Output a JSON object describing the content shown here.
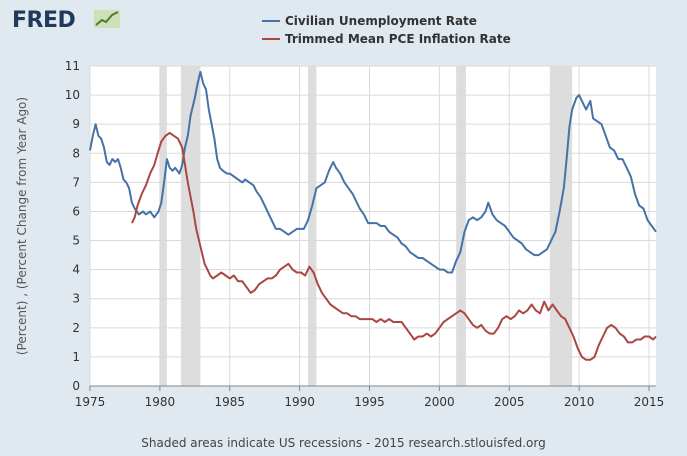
{
  "logo": {
    "text": "FRED",
    "mark": "chart-trend-icon"
  },
  "footnote": "Shaded areas indicate US recessions - 2015 research.stlouisfed.org",
  "colors": {
    "background": "#e1e9f0",
    "plot": "#ffffff",
    "recession": "#dddddd",
    "unemployment": "#4572a7",
    "inflation": "#aa4643"
  },
  "chart_data": {
    "type": "line",
    "title": "",
    "xlabel": "",
    "ylabel": "(Percent) , (Percent Change from Year Ago)",
    "xlim": [
      1975,
      2015.5
    ],
    "ylim": [
      0,
      11
    ],
    "xticks": [
      1975,
      1980,
      1985,
      1990,
      1995,
      2000,
      2005,
      2010,
      2015
    ],
    "yticks": [
      0,
      1,
      2,
      3,
      4,
      5,
      6,
      7,
      8,
      9,
      10,
      11
    ],
    "grid": true,
    "legend_position": "top",
    "recessions": [
      [
        1980.0,
        1980.5
      ],
      [
        1981.5,
        1982.9
      ],
      [
        1990.6,
        1991.2
      ],
      [
        2001.2,
        2001.9
      ],
      [
        2007.9,
        2009.5
      ]
    ],
    "series": [
      {
        "name": "Civilian Unemployment Rate",
        "color": "#4572a7",
        "points": [
          [
            1975.0,
            8.1
          ],
          [
            1975.2,
            8.6
          ],
          [
            1975.4,
            9.0
          ],
          [
            1975.6,
            8.6
          ],
          [
            1975.8,
            8.5
          ],
          [
            1976.0,
            8.2
          ],
          [
            1976.2,
            7.7
          ],
          [
            1976.4,
            7.6
          ],
          [
            1976.6,
            7.8
          ],
          [
            1976.8,
            7.7
          ],
          [
            1977.0,
            7.8
          ],
          [
            1977.2,
            7.5
          ],
          [
            1977.4,
            7.1
          ],
          [
            1977.6,
            7.0
          ],
          [
            1977.8,
            6.8
          ],
          [
            1978.0,
            6.3
          ],
          [
            1978.2,
            6.1
          ],
          [
            1978.5,
            5.9
          ],
          [
            1978.8,
            6.0
          ],
          [
            1979.0,
            5.9
          ],
          [
            1979.3,
            6.0
          ],
          [
            1979.6,
            5.8
          ],
          [
            1979.9,
            6.0
          ],
          [
            1980.1,
            6.3
          ],
          [
            1980.3,
            7.0
          ],
          [
            1980.5,
            7.8
          ],
          [
            1980.7,
            7.5
          ],
          [
            1980.9,
            7.4
          ],
          [
            1981.1,
            7.5
          ],
          [
            1981.4,
            7.3
          ],
          [
            1981.6,
            7.6
          ],
          [
            1981.8,
            8.2
          ],
          [
            1982.0,
            8.6
          ],
          [
            1982.2,
            9.3
          ],
          [
            1982.5,
            9.9
          ],
          [
            1982.7,
            10.4
          ],
          [
            1982.9,
            10.8
          ],
          [
            1983.1,
            10.4
          ],
          [
            1983.3,
            10.2
          ],
          [
            1983.5,
            9.5
          ],
          [
            1983.7,
            9.0
          ],
          [
            1983.9,
            8.5
          ],
          [
            1984.1,
            7.8
          ],
          [
            1984.3,
            7.5
          ],
          [
            1984.5,
            7.4
          ],
          [
            1984.8,
            7.3
          ],
          [
            1985.0,
            7.3
          ],
          [
            1985.3,
            7.2
          ],
          [
            1985.6,
            7.1
          ],
          [
            1985.9,
            7.0
          ],
          [
            1986.1,
            7.1
          ],
          [
            1986.4,
            7.0
          ],
          [
            1986.7,
            6.9
          ],
          [
            1986.9,
            6.7
          ],
          [
            1987.2,
            6.5
          ],
          [
            1987.5,
            6.2
          ],
          [
            1987.8,
            5.9
          ],
          [
            1988.0,
            5.7
          ],
          [
            1988.3,
            5.4
          ],
          [
            1988.6,
            5.4
          ],
          [
            1988.9,
            5.3
          ],
          [
            1989.2,
            5.2
          ],
          [
            1989.5,
            5.3
          ],
          [
            1989.8,
            5.4
          ],
          [
            1990.0,
            5.4
          ],
          [
            1990.3,
            5.4
          ],
          [
            1990.6,
            5.7
          ],
          [
            1990.9,
            6.2
          ],
          [
            1991.2,
            6.8
          ],
          [
            1991.5,
            6.9
          ],
          [
            1991.8,
            7.0
          ],
          [
            1992.1,
            7.4
          ],
          [
            1992.4,
            7.7
          ],
          [
            1992.6,
            7.5
          ],
          [
            1992.9,
            7.3
          ],
          [
            1993.2,
            7.0
          ],
          [
            1993.5,
            6.8
          ],
          [
            1993.8,
            6.6
          ],
          [
            1994.0,
            6.4
          ],
          [
            1994.3,
            6.1
          ],
          [
            1994.6,
            5.9
          ],
          [
            1994.9,
            5.6
          ],
          [
            1995.2,
            5.6
          ],
          [
            1995.5,
            5.6
          ],
          [
            1995.8,
            5.5
          ],
          [
            1996.1,
            5.5
          ],
          [
            1996.4,
            5.3
          ],
          [
            1996.7,
            5.2
          ],
          [
            1997.0,
            5.1
          ],
          [
            1997.3,
            4.9
          ],
          [
            1997.6,
            4.8
          ],
          [
            1997.9,
            4.6
          ],
          [
            1998.2,
            4.5
          ],
          [
            1998.5,
            4.4
          ],
          [
            1998.8,
            4.4
          ],
          [
            1999.1,
            4.3
          ],
          [
            1999.4,
            4.2
          ],
          [
            1999.7,
            4.1
          ],
          [
            2000.0,
            4.0
          ],
          [
            2000.3,
            4.0
          ],
          [
            2000.6,
            3.9
          ],
          [
            2000.9,
            3.9
          ],
          [
            2001.2,
            4.3
          ],
          [
            2001.5,
            4.6
          ],
          [
            2001.8,
            5.3
          ],
          [
            2002.1,
            5.7
          ],
          [
            2002.4,
            5.8
          ],
          [
            2002.7,
            5.7
          ],
          [
            2003.0,
            5.8
          ],
          [
            2003.3,
            6.0
          ],
          [
            2003.5,
            6.3
          ],
          [
            2003.8,
            5.9
          ],
          [
            2004.1,
            5.7
          ],
          [
            2004.4,
            5.6
          ],
          [
            2004.7,
            5.5
          ],
          [
            2005.0,
            5.3
          ],
          [
            2005.3,
            5.1
          ],
          [
            2005.6,
            5.0
          ],
          [
            2005.9,
            4.9
          ],
          [
            2006.2,
            4.7
          ],
          [
            2006.5,
            4.6
          ],
          [
            2006.8,
            4.5
          ],
          [
            2007.1,
            4.5
          ],
          [
            2007.4,
            4.6
          ],
          [
            2007.7,
            4.7
          ],
          [
            2008.0,
            5.0
          ],
          [
            2008.3,
            5.3
          ],
          [
            2008.6,
            6.0
          ],
          [
            2008.9,
            6.8
          ],
          [
            2009.1,
            7.8
          ],
          [
            2009.3,
            8.9
          ],
          [
            2009.5,
            9.5
          ],
          [
            2009.8,
            9.9
          ],
          [
            2010.0,
            10.0
          ],
          [
            2010.2,
            9.8
          ],
          [
            2010.5,
            9.5
          ],
          [
            2010.8,
            9.8
          ],
          [
            2011.0,
            9.2
          ],
          [
            2011.3,
            9.1
          ],
          [
            2011.6,
            9.0
          ],
          [
            2011.9,
            8.6
          ],
          [
            2012.2,
            8.2
          ],
          [
            2012.5,
            8.1
          ],
          [
            2012.8,
            7.8
          ],
          [
            2013.1,
            7.8
          ],
          [
            2013.4,
            7.5
          ],
          [
            2013.7,
            7.2
          ],
          [
            2014.0,
            6.6
          ],
          [
            2014.3,
            6.2
          ],
          [
            2014.6,
            6.1
          ],
          [
            2014.9,
            5.7
          ],
          [
            2015.2,
            5.5
          ],
          [
            2015.5,
            5.3
          ]
        ]
      },
      {
        "name": "Trimmed Mean PCE Inflation Rate",
        "color": "#aa4643",
        "points": [
          [
            1978.0,
            5.6
          ],
          [
            1978.2,
            5.8
          ],
          [
            1978.4,
            6.2
          ],
          [
            1978.7,
            6.6
          ],
          [
            1979.0,
            6.9
          ],
          [
            1979.3,
            7.3
          ],
          [
            1979.6,
            7.6
          ],
          [
            1979.9,
            8.1
          ],
          [
            1980.1,
            8.4
          ],
          [
            1980.4,
            8.6
          ],
          [
            1980.7,
            8.7
          ],
          [
            1981.0,
            8.6
          ],
          [
            1981.3,
            8.5
          ],
          [
            1981.6,
            8.2
          ],
          [
            1981.8,
            7.6
          ],
          [
            1982.0,
            7.0
          ],
          [
            1982.2,
            6.5
          ],
          [
            1982.4,
            6.0
          ],
          [
            1982.6,
            5.4
          ],
          [
            1982.8,
            5.0
          ],
          [
            1983.0,
            4.6
          ],
          [
            1983.2,
            4.2
          ],
          [
            1983.4,
            4.0
          ],
          [
            1983.6,
            3.8
          ],
          [
            1983.8,
            3.7
          ],
          [
            1984.1,
            3.8
          ],
          [
            1984.4,
            3.9
          ],
          [
            1984.7,
            3.8
          ],
          [
            1985.0,
            3.7
          ],
          [
            1985.3,
            3.8
          ],
          [
            1985.6,
            3.6
          ],
          [
            1985.9,
            3.6
          ],
          [
            1986.2,
            3.4
          ],
          [
            1986.5,
            3.2
          ],
          [
            1986.8,
            3.3
          ],
          [
            1987.1,
            3.5
          ],
          [
            1987.4,
            3.6
          ],
          [
            1987.7,
            3.7
          ],
          [
            1988.0,
            3.7
          ],
          [
            1988.3,
            3.8
          ],
          [
            1988.6,
            4.0
          ],
          [
            1988.9,
            4.1
          ],
          [
            1989.2,
            4.2
          ],
          [
            1989.5,
            4.0
          ],
          [
            1989.8,
            3.9
          ],
          [
            1990.1,
            3.9
          ],
          [
            1990.4,
            3.8
          ],
          [
            1990.7,
            4.1
          ],
          [
            1991.0,
            3.9
          ],
          [
            1991.3,
            3.5
          ],
          [
            1991.6,
            3.2
          ],
          [
            1991.9,
            3.0
          ],
          [
            1992.2,
            2.8
          ],
          [
            1992.5,
            2.7
          ],
          [
            1992.8,
            2.6
          ],
          [
            1993.1,
            2.5
          ],
          [
            1993.4,
            2.5
          ],
          [
            1993.7,
            2.4
          ],
          [
            1994.0,
            2.4
          ],
          [
            1994.3,
            2.3
          ],
          [
            1994.6,
            2.3
          ],
          [
            1994.9,
            2.3
          ],
          [
            1995.2,
            2.3
          ],
          [
            1995.5,
            2.2
          ],
          [
            1995.8,
            2.3
          ],
          [
            1996.1,
            2.2
          ],
          [
            1996.4,
            2.3
          ],
          [
            1996.7,
            2.2
          ],
          [
            1997.0,
            2.2
          ],
          [
            1997.3,
            2.2
          ],
          [
            1997.6,
            2.0
          ],
          [
            1997.9,
            1.8
          ],
          [
            1998.2,
            1.6
          ],
          [
            1998.5,
            1.7
          ],
          [
            1998.8,
            1.7
          ],
          [
            1999.1,
            1.8
          ],
          [
            1999.4,
            1.7
          ],
          [
            1999.7,
            1.8
          ],
          [
            2000.0,
            2.0
          ],
          [
            2000.3,
            2.2
          ],
          [
            2000.6,
            2.3
          ],
          [
            2000.9,
            2.4
          ],
          [
            2001.2,
            2.5
          ],
          [
            2001.5,
            2.6
          ],
          [
            2001.8,
            2.5
          ],
          [
            2002.1,
            2.3
          ],
          [
            2002.4,
            2.1
          ],
          [
            2002.7,
            2.0
          ],
          [
            2003.0,
            2.1
          ],
          [
            2003.3,
            1.9
          ],
          [
            2003.6,
            1.8
          ],
          [
            2003.9,
            1.8
          ],
          [
            2004.2,
            2.0
          ],
          [
            2004.5,
            2.3
          ],
          [
            2004.8,
            2.4
          ],
          [
            2005.1,
            2.3
          ],
          [
            2005.4,
            2.4
          ],
          [
            2005.7,
            2.6
          ],
          [
            2006.0,
            2.5
          ],
          [
            2006.3,
            2.6
          ],
          [
            2006.6,
            2.8
          ],
          [
            2006.9,
            2.6
          ],
          [
            2007.2,
            2.5
          ],
          [
            2007.5,
            2.9
          ],
          [
            2007.8,
            2.6
          ],
          [
            2008.1,
            2.8
          ],
          [
            2008.4,
            2.6
          ],
          [
            2008.7,
            2.4
          ],
          [
            2009.0,
            2.3
          ],
          [
            2009.3,
            2.0
          ],
          [
            2009.6,
            1.7
          ],
          [
            2009.9,
            1.3
          ],
          [
            2010.2,
            1.0
          ],
          [
            2010.5,
            0.9
          ],
          [
            2010.8,
            0.9
          ],
          [
            2011.1,
            1.0
          ],
          [
            2011.4,
            1.4
          ],
          [
            2011.7,
            1.7
          ],
          [
            2012.0,
            2.0
          ],
          [
            2012.3,
            2.1
          ],
          [
            2012.6,
            2.0
          ],
          [
            2012.9,
            1.8
          ],
          [
            2013.2,
            1.7
          ],
          [
            2013.5,
            1.5
          ],
          [
            2013.8,
            1.5
          ],
          [
            2014.1,
            1.6
          ],
          [
            2014.4,
            1.6
          ],
          [
            2014.7,
            1.7
          ],
          [
            2015.0,
            1.7
          ],
          [
            2015.3,
            1.6
          ],
          [
            2015.5,
            1.7
          ]
        ]
      }
    ]
  }
}
